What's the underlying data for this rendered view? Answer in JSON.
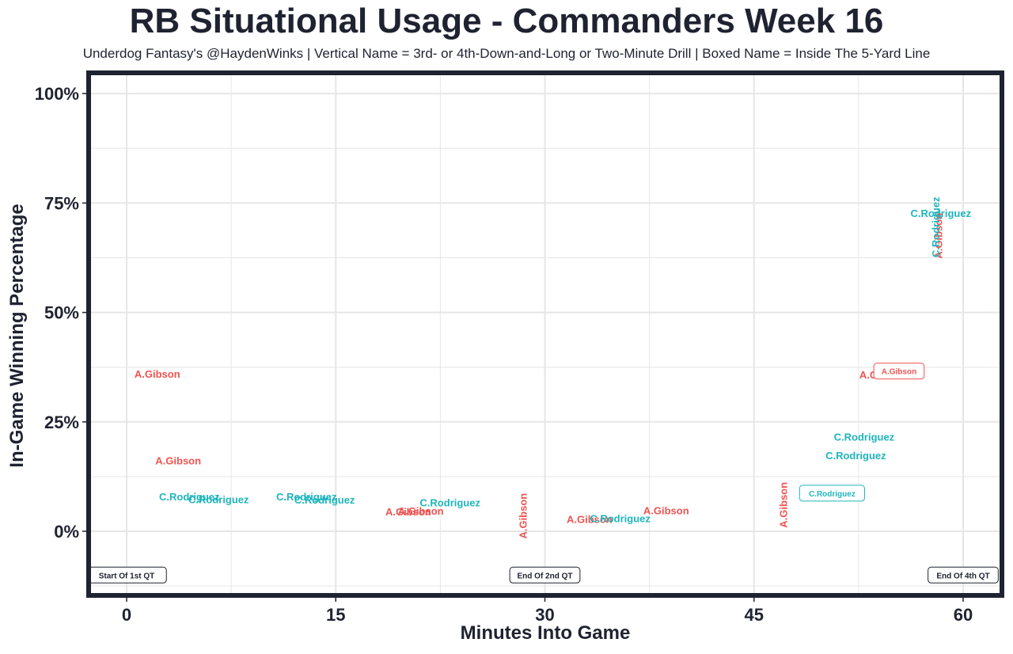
{
  "title": "RB Situational Usage - Commanders Week 16",
  "subtitle": "Underdog Fantasy's @HaydenWinks | Vertical Name = 3rd- or 4th-Down-and-Long or Two-Minute Drill | Boxed Name = Inside The 5-Yard Line",
  "colors": {
    "A.Gibson": "#ef5350",
    "C.Rodriguez": "#1fb5bd",
    "frame": "#1f2230",
    "grid": "#e6e6e6"
  },
  "chart_data": {
    "type": "scatter",
    "xlabel": "Minutes Into Game",
    "ylabel": "In-Game Winning Percentage",
    "xlim": [
      -2.9,
      62.8
    ],
    "ylim": [
      -15,
      103
    ],
    "xticks": [
      0,
      15,
      30,
      45,
      60
    ],
    "yticks": [
      0,
      25,
      50,
      75,
      100
    ],
    "ytick_labels": [
      "0%",
      "25%",
      "50%",
      "75%",
      "100%"
    ],
    "grid": true,
    "legend": "none",
    "reference_labels": [
      {
        "x": 0,
        "y": -10,
        "label": "Start Of 1st QT"
      },
      {
        "x": 30,
        "y": -10,
        "label": "End Of 2nd QT"
      },
      {
        "x": 60,
        "y": -10,
        "label": "End Of 4th QT"
      }
    ],
    "points": [
      {
        "player": "A.Gibson",
        "x": 2.2,
        "y": 36,
        "style": "normal"
      },
      {
        "player": "A.Gibson",
        "x": 3.7,
        "y": 16.2,
        "style": "normal"
      },
      {
        "player": "C.Rodriguez",
        "x": 4.5,
        "y": 8.0,
        "style": "normal"
      },
      {
        "player": "C.Rodriguez",
        "x": 6.6,
        "y": 7.3,
        "style": "normal"
      },
      {
        "player": "C.Rodriguez",
        "x": 12.9,
        "y": 8.0,
        "style": "normal"
      },
      {
        "player": "C.Rodriguez",
        "x": 14.2,
        "y": 7.2,
        "style": "normal"
      },
      {
        "player": "A.Gibson",
        "x": 20.2,
        "y": 4.5,
        "style": "normal"
      },
      {
        "player": "A.Gibson",
        "x": 21.1,
        "y": 4.7,
        "style": "normal"
      },
      {
        "player": "C.Rodriguez",
        "x": 23.2,
        "y": 6.6,
        "style": "normal"
      },
      {
        "player": "A.Gibson",
        "x": 28.4,
        "y": 3.5,
        "style": "vertical"
      },
      {
        "player": "A.Gibson",
        "x": 33.2,
        "y": 2.8,
        "style": "normal"
      },
      {
        "player": "C.Rodriguez",
        "x": 35.4,
        "y": 3.0,
        "style": "normal"
      },
      {
        "player": "A.Gibson",
        "x": 38.7,
        "y": 4.8,
        "style": "normal"
      },
      {
        "player": "A.Gibson",
        "x": 47.1,
        "y": 6.0,
        "style": "vertical"
      },
      {
        "player": "C.Rodriguez",
        "x": 50.6,
        "y": 8.7,
        "style": "boxed"
      },
      {
        "player": "C.Rodriguez",
        "x": 52.3,
        "y": 17.4,
        "style": "normal"
      },
      {
        "player": "C.Rodriguez",
        "x": 52.9,
        "y": 21.6,
        "style": "normal"
      },
      {
        "player": "A.Gibson",
        "x": 54.2,
        "y": 35.8,
        "style": "normal"
      },
      {
        "player": "A.Gibson",
        "x": 55.4,
        "y": 36.6,
        "style": "boxed"
      },
      {
        "player": "C.Rodriguez",
        "x": 58.4,
        "y": 72.7,
        "style": "normal"
      },
      {
        "player": "A.Gibson",
        "x": 58.2,
        "y": 67.5,
        "style": "vertical"
      },
      {
        "player": "C.Rodriguez",
        "x": 58.0,
        "y": 69.5,
        "style": "vertical"
      }
    ]
  }
}
